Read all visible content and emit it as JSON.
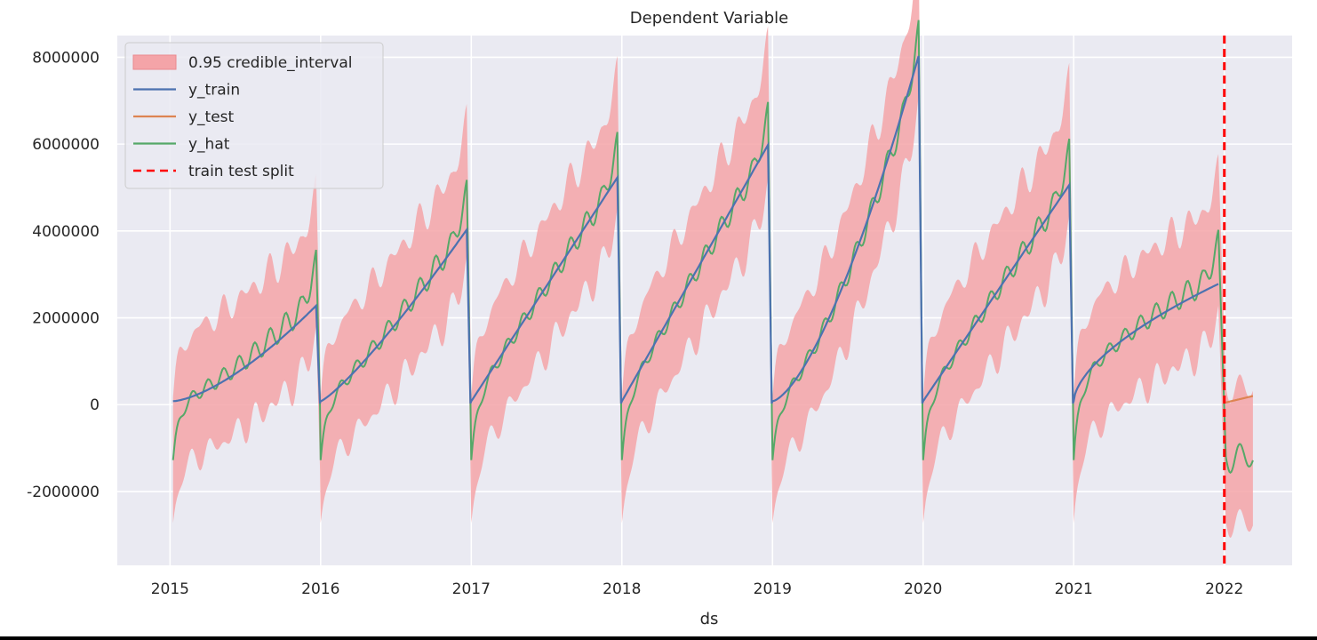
{
  "chart_data": {
    "type": "line",
    "title": "Dependent Variable",
    "xlabel": "ds",
    "ylabel": "",
    "xlim": [
      2014.65,
      2022.45
    ],
    "ylim": [
      -3700000,
      8500000
    ],
    "x_ticks": [
      2015,
      2016,
      2017,
      2018,
      2019,
      2020,
      2021,
      2022
    ],
    "x_tick_labels": [
      "2015",
      "2016",
      "2017",
      "2018",
      "2019",
      "2020",
      "2021",
      "2022"
    ],
    "y_ticks": [
      -2000000,
      0,
      2000000,
      4000000,
      6000000,
      8000000
    ],
    "y_tick_labels": [
      "-2000000",
      "0",
      "2000000",
      "4000000",
      "6000000",
      "8000000"
    ],
    "grid": true,
    "legend_position": "top-left",
    "split_x": 2022.0,
    "yearly_peaks": [
      2200000,
      3950000,
      5150000,
      5900000,
      7950000,
      4980000
    ],
    "series": [
      {
        "name": "0.95 credible_interval",
        "kind": "band",
        "color": "#f4a4a8"
      },
      {
        "name": "y_train",
        "kind": "line",
        "color": "#4c72b0"
      },
      {
        "name": "y_test",
        "kind": "line",
        "color": "#dd8452"
      },
      {
        "name": "y_hat",
        "kind": "line",
        "color": "#55a868"
      },
      {
        "name": "train test split",
        "kind": "vline",
        "color": "#ff0000"
      }
    ]
  }
}
